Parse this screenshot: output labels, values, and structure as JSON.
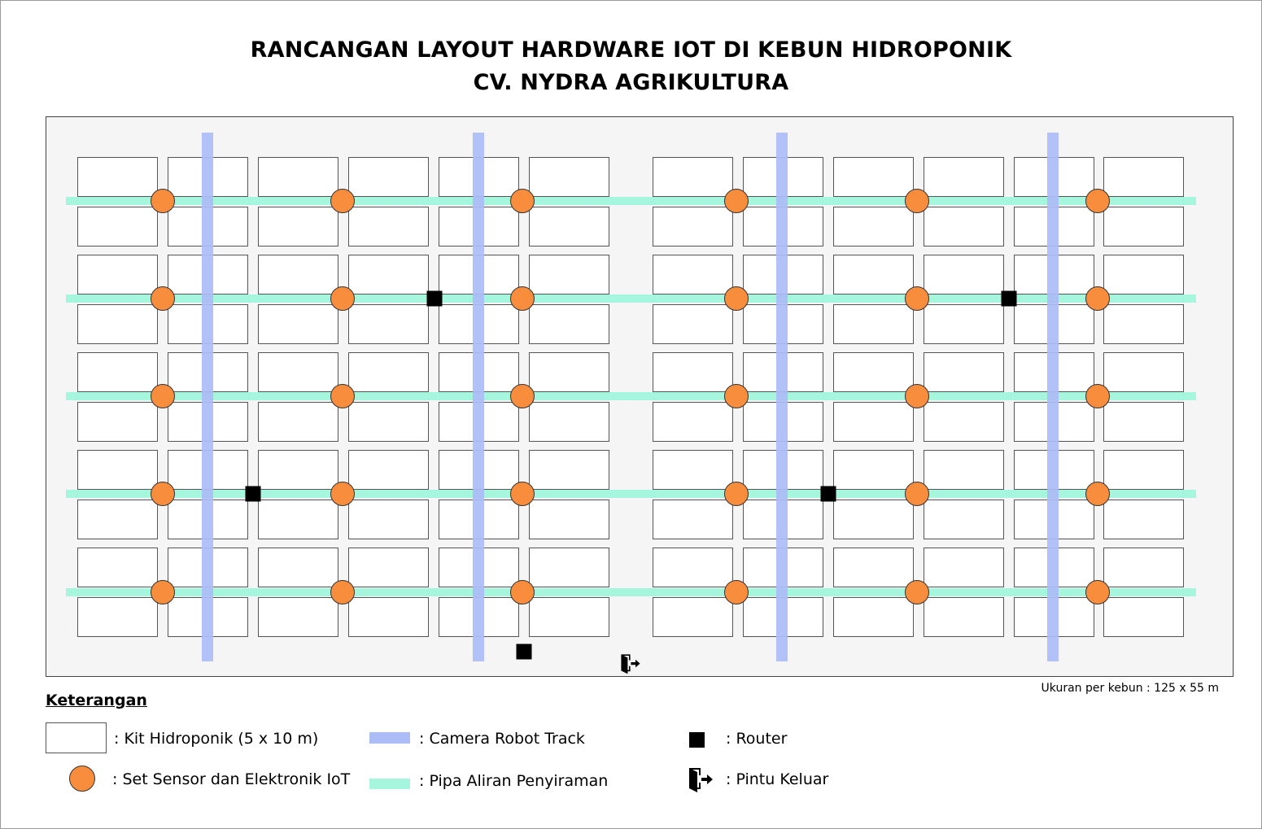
{
  "title": {
    "line1": "RANCANGAN LAYOUT HARDWARE IOT DI KEBUN HIDROPONIK",
    "line2": "CV. NYDRA AGRIKULTURA"
  },
  "size_note": "Ukuran per kebun : 125 x 55 m",
  "legend": {
    "heading": "Keterangan",
    "kit": ": Kit Hidroponik (5 x 10 m)",
    "sensor": ": Set Sensor dan Elektronik IoT",
    "camera": ": Camera Robot Track",
    "pipe": ": Pipa Aliran Penyiraman",
    "router": ": Router",
    "exit": ": Pintu Keluar"
  },
  "colors": {
    "sensor": "#f78d3d",
    "camera_track": "#abbcf6",
    "pipe": "#a6f5dd",
    "router": "#000000",
    "field_bg": "#f5f5f5"
  },
  "icons": {
    "exit": "door-exit-icon"
  },
  "layout_counts": {
    "kit_columns": 12,
    "kit_rows": 10,
    "sensor_rows": 5,
    "sensors_per_row": 6,
    "camera_tracks": 4,
    "routers": 5,
    "exits": 1
  }
}
